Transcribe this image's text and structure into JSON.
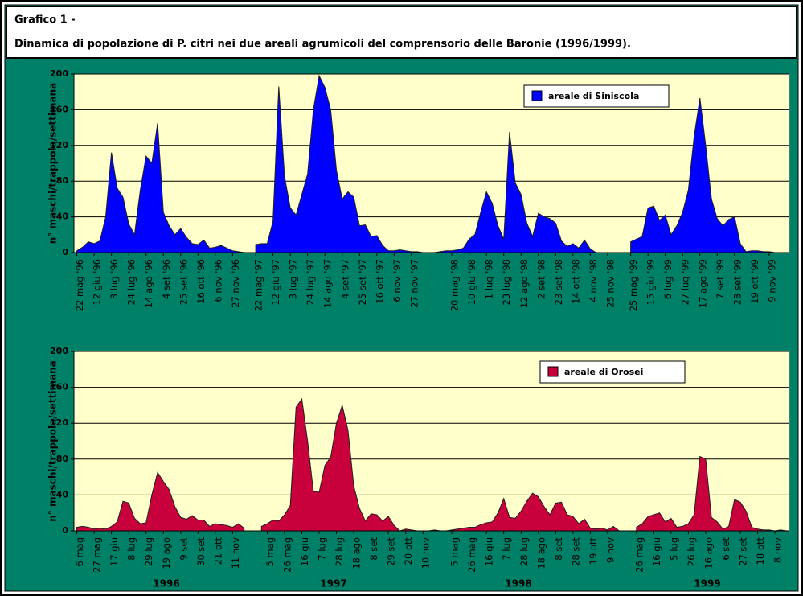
{
  "header": {
    "title": "Grafico 1 -",
    "subtitle": "Dinamica di popolazione di P. citri nei due areali agrumicoli del comprensorio delle Baronie (1996/1999)."
  },
  "chart_data": [
    {
      "type": "area",
      "ylabel": "n° maschi/trappola/settimana",
      "ylim": [
        0,
        200
      ],
      "yticks": [
        0,
        40,
        80,
        120,
        160,
        200
      ],
      "grid": true,
      "legend": "top-right",
      "categories": [
        "22 mag '96",
        null,
        null,
        "12 giu '96",
        null,
        null,
        "3 lug '96",
        null,
        null,
        "24 lug '96",
        null,
        null,
        "14 ago '96",
        null,
        null,
        "4 set '96",
        null,
        null,
        "25 set '96",
        null,
        null,
        "16 ott '96",
        null,
        null,
        "6 nov '96",
        null,
        null,
        "27 nov '96",
        null,
        null,
        null,
        "22 mag '97",
        null,
        null,
        "12 giu '97",
        null,
        null,
        "3 lug '97",
        null,
        null,
        "24 lug '97",
        null,
        null,
        "14 ago '97",
        null,
        null,
        "4 set '97",
        null,
        null,
        "25 set '97",
        null,
        null,
        "16 ott '97",
        null,
        null,
        "6 nov '97",
        null,
        null,
        "27 nov '97",
        null,
        null,
        null,
        null,
        null,
        null,
        "20 mag '98",
        null,
        null,
        "10 giu '98",
        null,
        null,
        "1 lug '98",
        null,
        null,
        "23 lug '98",
        null,
        null,
        "12 ago '98",
        null,
        null,
        "2 set '98",
        null,
        null,
        "23 set '98",
        null,
        null,
        "14 ott '98",
        null,
        null,
        "4 nov '98",
        null,
        null,
        "25 nov '98",
        null,
        null,
        null,
        "25 mag '99",
        null,
        null,
        "15 giu '99",
        null,
        null,
        "6 lug '99",
        null,
        null,
        "27 lug '99",
        null,
        null,
        "17 ago '99",
        null,
        null,
        "7 set '99",
        null,
        null,
        "28 set '99",
        null,
        null,
        "19 ott '99",
        null,
        null,
        "9 nov '99",
        null,
        null,
        null
      ],
      "series": [
        {
          "name": "areale di Siniscola",
          "color": "#0000ff",
          "values": [
            2,
            6,
            12,
            10,
            13,
            40,
            112,
            72,
            62,
            32,
            20,
            70,
            108,
            100,
            145,
            45,
            30,
            20,
            27,
            17,
            10,
            9,
            14,
            5,
            6,
            8,
            5,
            2,
            1,
            0,
            null,
            9,
            10,
            10,
            35,
            186,
            85,
            50,
            42,
            65,
            88,
            160,
            198,
            185,
            160,
            92,
            60,
            68,
            62,
            30,
            31,
            18,
            19,
            8,
            2,
            2,
            3,
            2,
            1,
            1,
            0,
            0,
            0,
            1,
            2,
            2,
            3,
            5,
            15,
            20,
            45,
            68,
            55,
            30,
            15,
            135,
            78,
            65,
            33,
            18,
            44,
            40,
            38,
            33,
            13,
            7,
            10,
            5,
            14,
            4,
            0,
            0,
            0,
            0,
            null,
            null,
            12,
            15,
            18,
            50,
            52,
            36,
            42,
            20,
            30,
            45,
            70,
            130,
            173,
            120,
            60,
            38,
            30,
            37,
            40,
            10,
            1,
            2,
            2,
            1,
            1,
            0,
            0,
            0
          ]
        }
      ]
    },
    {
      "type": "area",
      "ylabel": "n° maschi/trappola/settimana",
      "ylim": [
        0,
        200
      ],
      "yticks": [
        0,
        40,
        80,
        120,
        160,
        200
      ],
      "grid": true,
      "legend": "top-right",
      "group_labels": [
        "1996",
        "1997",
        "1998",
        "1999"
      ],
      "categories": [
        "6 mag",
        null,
        null,
        "27 mag",
        null,
        null,
        "17 giu",
        null,
        null,
        "8 lug",
        null,
        null,
        "29 lug",
        null,
        null,
        "19 ago",
        null,
        null,
        "9 set",
        null,
        null,
        "30 set",
        null,
        null,
        "21 ott",
        null,
        null,
        "11 nov",
        null,
        null,
        null,
        null,
        null,
        "5 mag",
        null,
        null,
        "26 mag",
        null,
        null,
        "16 giu",
        null,
        null,
        "7 lug",
        null,
        null,
        "28 lug",
        null,
        null,
        "18 ago",
        null,
        null,
        "8 set",
        null,
        null,
        "29 set",
        null,
        null,
        "20 ott",
        null,
        null,
        "10 nov",
        null,
        null,
        null,
        null,
        "5 mag",
        null,
        null,
        "26 mag",
        null,
        null,
        "16 giu",
        null,
        null,
        "7 lug",
        null,
        null,
        "28 lug",
        null,
        null,
        "18 ago",
        null,
        null,
        "8 set",
        null,
        null,
        "28 set",
        null,
        null,
        "19 ott",
        null,
        null,
        "9 nov",
        null,
        null,
        null,
        null,
        "26 mag",
        null,
        null,
        "16 giu",
        null,
        null,
        "5 lug",
        null,
        null,
        "26 lug",
        null,
        null,
        "16 ago",
        null,
        null,
        "6 set",
        null,
        null,
        "27 set",
        null,
        null,
        "18 ott",
        null,
        null,
        "8 nov",
        null,
        null
      ],
      "series": [
        {
          "name": "areale di Orosei",
          "color": "#c8003c",
          "values": [
            4,
            5,
            4,
            2,
            3,
            2,
            5,
            10,
            33,
            31,
            14,
            8,
            9,
            40,
            65,
            55,
            46,
            27,
            15,
            13,
            17,
            12,
            12,
            5,
            8,
            7,
            6,
            4,
            8,
            3,
            null,
            null,
            5,
            8,
            12,
            11,
            18,
            28,
            138,
            147,
            100,
            44,
            43,
            73,
            82,
            120,
            140,
            112,
            50,
            25,
            11,
            19,
            18,
            11,
            16,
            6,
            0,
            2,
            1,
            0,
            0,
            0,
            1,
            0,
            0,
            1,
            2,
            3,
            4,
            4,
            7,
            9,
            10,
            20,
            36,
            15,
            14,
            22,
            33,
            42,
            38,
            27,
            18,
            31,
            32,
            18,
            16,
            8,
            13,
            3,
            2,
            3,
            1,
            5,
            0,
            null,
            null,
            4,
            8,
            16,
            18,
            20,
            10,
            14,
            4,
            5,
            8,
            18,
            83,
            80,
            15,
            10,
            2,
            5,
            35,
            32,
            22,
            4,
            2,
            1,
            1,
            0,
            1,
            0
          ]
        }
      ]
    }
  ]
}
